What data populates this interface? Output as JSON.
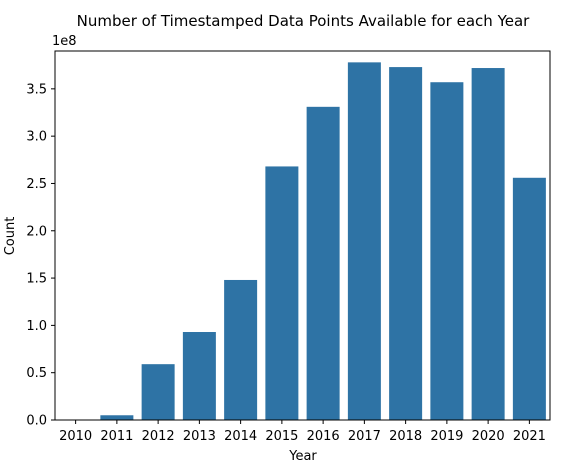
{
  "chart_data": {
    "type": "bar",
    "title": "Number of Timestamped Data Points Available for each Year",
    "xlabel": "Year",
    "ylabel": "Count",
    "y_offset_label": "1e8",
    "categories": [
      "2010",
      "2011",
      "2012",
      "2013",
      "2014",
      "2015",
      "2016",
      "2017",
      "2018",
      "2019",
      "2020",
      "2021"
    ],
    "values": [
      0,
      5000000,
      59000000,
      93000000,
      148000000,
      268000000,
      331000000,
      378000000,
      373000000,
      357000000,
      372000000,
      256000000
    ],
    "ylim": [
      0,
      390000000
    ],
    "y_ticks": [
      0,
      50000000,
      100000000,
      150000000,
      200000000,
      250000000,
      300000000,
      350000000
    ],
    "y_tick_labels": [
      "0.0",
      "0.5",
      "1.0",
      "1.5",
      "2.0",
      "2.5",
      "3.0",
      "3.5"
    ],
    "grid": false,
    "legend": false,
    "bar_color": "#2e73a5"
  }
}
